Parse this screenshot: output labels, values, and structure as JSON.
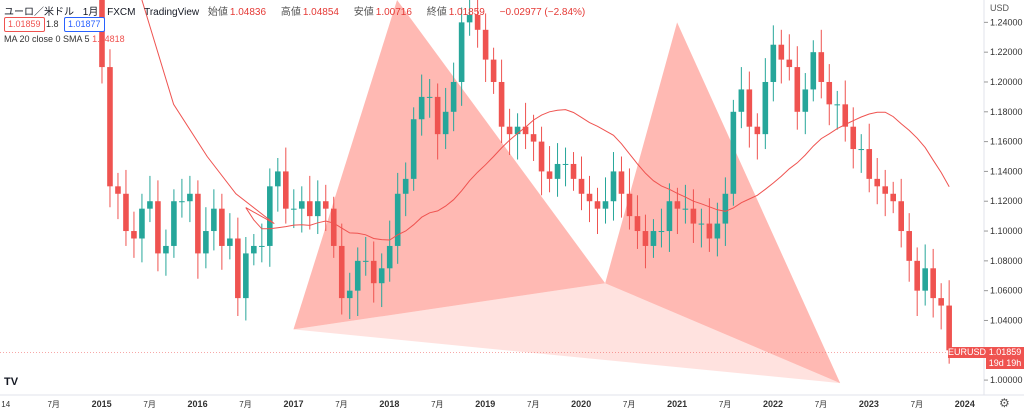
{
  "header": {
    "symbol": "ユーロ／米ドル",
    "interval": "1月",
    "exchange": "FXCM",
    "source": "TradingView",
    "open_label": "始値",
    "open": "1.04836",
    "high_label": "高値",
    "high": "1.04854",
    "low_label": "安値",
    "low": "1.00716",
    "close_label": "終値",
    "close": "1.01859",
    "change": "−0.02977 (−2.84%)",
    "sell_price": "1.01859",
    "spread": "1.8",
    "buy_price": "1.01877"
  },
  "indicator": {
    "label": "MA 20 close 0 SMA 5",
    "value": "1.04818"
  },
  "price_tag": {
    "symbol": "EURUSD",
    "price": "1.01859",
    "countdown": "19d 19h"
  },
  "currency_label": "USD",
  "colors": {
    "up": "#26a69a",
    "down": "#ef5350",
    "ma": "#ef5350",
    "pattern": "#ff8a80"
  },
  "chart_data": {
    "type": "candlestick",
    "y_ticks": [
      "1.24000",
      "1.22000",
      "1.20000",
      "1.18000",
      "1.16000",
      "1.14000",
      "1.12000",
      "1.10000",
      "1.08000",
      "1.06000",
      "1.04000",
      "1.02000",
      "1.00000"
    ],
    "ylim": [
      0.99,
      1.255
    ],
    "x_labels": [
      {
        "t": 2014.0,
        "label": "14"
      },
      {
        "t": 2014.5,
        "label": "7月"
      },
      {
        "t": 2015.0,
        "label": "2015"
      },
      {
        "t": 2015.5,
        "label": "7月"
      },
      {
        "t": 2016.0,
        "label": "2016"
      },
      {
        "t": 2016.5,
        "label": "7月"
      },
      {
        "t": 2017.0,
        "label": "2017"
      },
      {
        "t": 2017.5,
        "label": "7月"
      },
      {
        "t": 2018.0,
        "label": "2018"
      },
      {
        "t": 2018.5,
        "label": "7月"
      },
      {
        "t": 2019.0,
        "label": "2019"
      },
      {
        "t": 2019.5,
        "label": "7月"
      },
      {
        "t": 2020.0,
        "label": "2020"
      },
      {
        "t": 2020.5,
        "label": "7月"
      },
      {
        "t": 2021.0,
        "label": "2021"
      },
      {
        "t": 2021.5,
        "label": "7月"
      },
      {
        "t": 2022.0,
        "label": "2022"
      },
      {
        "t": 2022.5,
        "label": "7月"
      },
      {
        "t": 2023.0,
        "label": "2023"
      },
      {
        "t": 2023.5,
        "label": "7月"
      },
      {
        "t": 2024.0,
        "label": "2024"
      }
    ],
    "xlim": [
      2013.94,
      2024.2
    ],
    "closes": [
      1.255,
      1.21,
      1.13,
      1.125,
      1.1,
      1.095,
      1.115,
      1.12,
      1.085,
      1.09,
      1.12,
      1.12,
      1.125,
      1.085,
      1.1,
      1.115,
      1.09,
      1.095,
      1.055,
      1.085,
      1.09,
      1.09,
      1.13,
      1.14,
      1.115,
      1.115,
      1.12,
      1.11,
      1.12,
      1.115,
      1.09,
      1.055,
      1.06,
      1.08,
      1.08,
      1.065,
      1.075,
      1.09,
      1.125,
      1.135,
      1.175,
      1.19,
      1.19,
      1.165,
      1.18,
      1.2,
      1.24,
      1.245,
      1.235,
      1.215,
      1.2,
      1.17,
      1.165,
      1.17,
      1.165,
      1.16,
      1.14,
      1.135,
      1.145,
      1.145,
      1.135,
      1.125,
      1.12,
      1.115,
      1.12,
      1.14,
      1.125,
      1.11,
      1.1,
      1.09,
      1.1,
      1.1,
      1.12,
      1.115,
      1.115,
      1.105,
      1.105,
      1.095,
      1.105,
      1.125,
      1.18,
      1.195,
      1.17,
      1.165,
      1.2,
      1.225,
      1.215,
      1.21,
      1.18,
      1.195,
      1.22,
      1.2,
      1.185,
      1.185,
      1.17,
      1.155,
      1.155,
      1.135,
      1.13,
      1.125,
      1.12,
      1.1,
      1.08,
      1.06,
      1.075,
      1.055,
      1.05,
      1.02
    ],
    "pattern_points": [
      {
        "t": 2017.0,
        "v": 1.034
      },
      {
        "t": 2018.08,
        "v": 1.255
      },
      {
        "t": 2020.25,
        "v": 1.065
      },
      {
        "t": 2021.0,
        "v": 1.24
      },
      {
        "t": 2022.7,
        "v": 0.998
      }
    ]
  }
}
